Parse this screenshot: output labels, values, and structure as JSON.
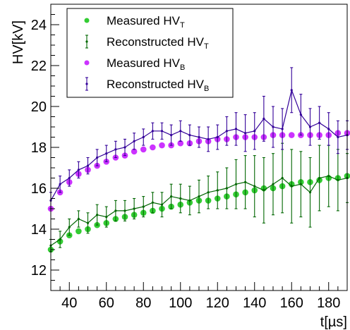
{
  "chart_data": {
    "type": "scatter",
    "xlabel": "t[µs]",
    "ylabel": "HV[kV]",
    "xlim": [
      30,
      190
    ],
    "ylim": [
      11,
      25
    ],
    "xticks": [
      40,
      60,
      80,
      100,
      120,
      140,
      160,
      180
    ],
    "yticks": [
      12,
      14,
      16,
      18,
      20,
      22,
      24
    ],
    "legend_position": "top-left",
    "grid": false,
    "colors": {
      "measured_T": "#33cc33",
      "reconstructed_T": "#006600",
      "measured_B": "#cc33ff",
      "reconstructed_B": "#330099"
    },
    "series": [
      {
        "key": "measured_T",
        "legend_main": "Measured HV",
        "legend_sub": "T",
        "kind": "points",
        "x": [
          30,
          35,
          40,
          45,
          50,
          55,
          60,
          65,
          70,
          75,
          80,
          85,
          90,
          95,
          100,
          105,
          110,
          115,
          120,
          125,
          130,
          135,
          140,
          145,
          150,
          155,
          160,
          165,
          170,
          175,
          180,
          185,
          190
        ],
        "y": [
          13.0,
          13.4,
          13.7,
          13.9,
          14.0,
          14.2,
          14.3,
          14.5,
          14.6,
          14.7,
          14.8,
          14.9,
          15.0,
          15.1,
          15.2,
          15.3,
          15.4,
          15.4,
          15.5,
          15.6,
          15.7,
          15.8,
          15.9,
          16.0,
          16.0,
          16.1,
          16.2,
          16.3,
          16.3,
          16.4,
          16.5,
          16.5,
          16.6
        ]
      },
      {
        "key": "reconstructed_T",
        "legend_main": "Reconstructed HV",
        "legend_sub": "T",
        "kind": "errorbars",
        "x": [
          30,
          35,
          40,
          45,
          50,
          55,
          60,
          65,
          70,
          75,
          80,
          85,
          90,
          95,
          100,
          105,
          110,
          115,
          120,
          125,
          130,
          135,
          140,
          145,
          150,
          155,
          160,
          165,
          170,
          175,
          180,
          185,
          190
        ],
        "y": [
          13.2,
          13.5,
          14.1,
          14.5,
          14.3,
          14.7,
          14.6,
          14.9,
          14.9,
          15.0,
          15.1,
          15.3,
          15.2,
          15.6,
          15.5,
          15.4,
          15.6,
          15.8,
          15.9,
          16.0,
          16.2,
          16.3,
          16.1,
          15.9,
          16.2,
          16.5,
          16.1,
          16.2,
          15.8,
          16.5,
          16.6,
          16.4,
          16.5
        ],
        "err": [
          0.3,
          0.4,
          0.4,
          0.4,
          0.5,
          0.5,
          0.5,
          0.5,
          0.5,
          0.5,
          0.5,
          0.5,
          0.6,
          0.6,
          0.7,
          0.7,
          0.8,
          0.8,
          0.9,
          1.0,
          1.2,
          1.3,
          1.5,
          1.6,
          1.5,
          1.7,
          1.8,
          1.6,
          1.7,
          1.6,
          1.5,
          1.5,
          1.2
        ]
      },
      {
        "key": "measured_B",
        "legend_main": "Measured HV",
        "legend_sub": "B",
        "kind": "points",
        "x": [
          30,
          35,
          40,
          45,
          50,
          55,
          60,
          65,
          70,
          75,
          80,
          85,
          90,
          95,
          100,
          105,
          110,
          115,
          120,
          125,
          130,
          135,
          140,
          145,
          150,
          155,
          160,
          165,
          170,
          175,
          180,
          185,
          190
        ],
        "y": [
          15.0,
          15.8,
          16.3,
          16.7,
          16.9,
          17.1,
          17.3,
          17.5,
          17.6,
          17.8,
          17.9,
          18.0,
          18.1,
          18.1,
          18.2,
          18.2,
          18.3,
          18.3,
          18.4,
          18.4,
          18.5,
          18.5,
          18.5,
          18.5,
          18.6,
          18.6,
          18.6,
          18.6,
          18.6,
          18.6,
          18.6,
          18.7,
          18.7
        ]
      },
      {
        "key": "reconstructed_B",
        "legend_main": "Reconstructed HV",
        "legend_sub": "B",
        "kind": "errorbars",
        "x": [
          30,
          35,
          40,
          45,
          50,
          55,
          60,
          65,
          70,
          75,
          80,
          85,
          90,
          95,
          100,
          105,
          110,
          115,
          120,
          125,
          130,
          135,
          140,
          145,
          150,
          155,
          160,
          165,
          170,
          175,
          180,
          185,
          190
        ],
        "y": [
          15.4,
          16.2,
          16.5,
          16.9,
          17.1,
          17.5,
          17.7,
          17.9,
          18.0,
          18.3,
          18.5,
          18.8,
          18.8,
          18.6,
          18.8,
          18.6,
          18.5,
          18.4,
          18.5,
          18.8,
          18.9,
          18.7,
          18.8,
          19.4,
          19.0,
          18.9,
          20.8,
          19.6,
          19.0,
          19.2,
          18.9,
          18.5,
          18.6
        ],
        "err": [
          0.4,
          0.4,
          0.4,
          0.4,
          0.4,
          0.4,
          0.4,
          0.4,
          0.4,
          0.4,
          0.4,
          0.4,
          0.4,
          0.5,
          0.5,
          0.5,
          0.5,
          0.6,
          0.6,
          0.7,
          0.8,
          0.9,
          0.9,
          1.1,
          1.0,
          1.0,
          1.1,
          1.0,
          0.9,
          0.8,
          0.8,
          0.8,
          0.7
        ]
      }
    ]
  }
}
